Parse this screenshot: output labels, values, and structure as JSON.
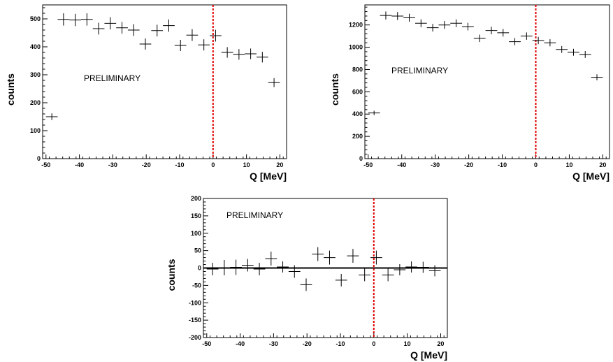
{
  "chart_data": [
    {
      "type": "scatter",
      "title": "",
      "xlabel": "Q [MeV]",
      "ylabel": "counts",
      "annotation": "PRELIMINARY",
      "xlim": [
        -51,
        22
      ],
      "ylim": [
        0,
        550
      ],
      "xticks": [
        -50,
        -40,
        -30,
        -20,
        -10,
        0,
        10,
        20
      ],
      "yticks": [
        0,
        100,
        200,
        300,
        400,
        500
      ],
      "xerr": 1.75,
      "x": [
        -48.25,
        -44.75,
        -41.25,
        -37.75,
        -34.25,
        -30.75,
        -27.25,
        -23.75,
        -20.25,
        -16.75,
        -13.25,
        -9.75,
        -6.25,
        -2.75,
        0.75,
        4.25,
        7.75,
        11.25,
        14.75,
        18.25
      ],
      "y": [
        150,
        498,
        496,
        498,
        465,
        484,
        468,
        460,
        410,
        458,
        476,
        405,
        442,
        407,
        440,
        380,
        373,
        375,
        363,
        272
      ],
      "yerr": [
        12,
        22,
        22,
        22,
        21,
        22,
        21,
        21,
        20,
        21,
        22,
        20,
        21,
        20,
        21,
        19,
        19,
        19,
        19,
        16
      ],
      "threshold_x": 0
    },
    {
      "type": "scatter",
      "title": "",
      "xlabel": "Q [MeV]",
      "ylabel": "counts",
      "annotation": "PRELIMINARY",
      "xlim": [
        -51,
        22
      ],
      "ylim": [
        0,
        1380
      ],
      "xticks": [
        -50,
        -40,
        -30,
        -20,
        -10,
        0,
        10,
        20
      ],
      "yticks": [
        0,
        200,
        400,
        600,
        800,
        1000,
        1200
      ],
      "xerr": 1.75,
      "x": [
        -48.25,
        -44.75,
        -41.25,
        -37.75,
        -34.25,
        -30.75,
        -27.25,
        -23.75,
        -20.25,
        -16.75,
        -13.25,
        -9.75,
        -6.25,
        -2.75,
        0.75,
        4.25,
        7.75,
        11.25,
        14.75,
        18.25
      ],
      "y": [
        410,
        1285,
        1280,
        1265,
        1215,
        1175,
        1200,
        1215,
        1185,
        1080,
        1150,
        1130,
        1050,
        1100,
        1060,
        1040,
        980,
        955,
        935,
        730
      ],
      "yerr": [
        20,
        36,
        36,
        36,
        35,
        34,
        35,
        35,
        34,
        33,
        34,
        34,
        32,
        33,
        33,
        32,
        31,
        31,
        31,
        27
      ],
      "threshold_x": 0
    },
    {
      "type": "scatter",
      "title": "",
      "xlabel": "Q [MeV]",
      "ylabel": "counts",
      "annotation": "PRELIMINARY",
      "xlim": [
        -51,
        22
      ],
      "ylim": [
        -200,
        200
      ],
      "xticks": [
        -50,
        -40,
        -30,
        -20,
        -10,
        0,
        10,
        20
      ],
      "yticks": [
        -200,
        -150,
        -100,
        -50,
        0,
        50,
        100,
        150,
        200
      ],
      "xerr": 1.75,
      "x": [
        -48.25,
        -44.75,
        -41.25,
        -37.75,
        -34.25,
        -30.75,
        -27.25,
        -23.75,
        -20.25,
        -16.75,
        -13.25,
        -9.75,
        -6.25,
        -2.75,
        0.75,
        4.25,
        7.75,
        11.25,
        14.75,
        18.25
      ],
      "y": [
        -3,
        1,
        2,
        8,
        -3,
        27,
        3,
        -10,
        -48,
        40,
        30,
        -35,
        35,
        -20,
        30,
        -20,
        -5,
        3,
        2,
        -8
      ],
      "yerr": [
        18,
        22,
        22,
        18,
        18,
        20,
        16,
        18,
        18,
        20,
        20,
        18,
        20,
        18,
        20,
        18,
        16,
        16,
        16,
        16
      ],
      "zero_line_y": 0,
      "threshold_x": 0
    }
  ]
}
